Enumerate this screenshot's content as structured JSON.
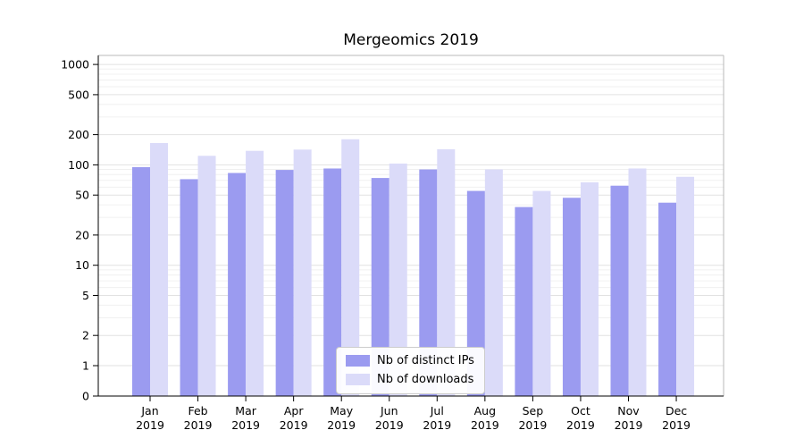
{
  "title": "Mergeomics 2019",
  "chart_data": {
    "type": "bar",
    "title": "Mergeomics 2019",
    "scale": "symlog",
    "grid": true,
    "legend_position": "lower center",
    "year_label": "2019",
    "categories": [
      "Jan",
      "Feb",
      "Mar",
      "Apr",
      "May",
      "Jun",
      "Jul",
      "Aug",
      "Sep",
      "Oct",
      "Nov",
      "Dec"
    ],
    "series": [
      {
        "name": "Nb of distinct IPs",
        "color": "#9b9bf0",
        "values": [
          95,
          72,
          83,
          89,
          92,
          74,
          90,
          55,
          38,
          47,
          62,
          42
        ]
      },
      {
        "name": "Nb of downloads",
        "color": "#dbdbf9",
        "values": [
          165,
          123,
          138,
          142,
          180,
          103,
          143,
          90,
          55,
          67,
          92,
          76
        ]
      }
    ],
    "yticks": [
      1000,
      500,
      200,
      100,
      50,
      20,
      10,
      5,
      2,
      1,
      0
    ],
    "ylim": [
      0,
      1000
    ],
    "xlabel": "",
    "ylabel": ""
  },
  "legend": {
    "entries": [
      {
        "label": "Nb of distinct IPs",
        "color": "#9b9bf0"
      },
      {
        "label": "Nb of downloads",
        "color": "#dbdbf9"
      }
    ]
  }
}
